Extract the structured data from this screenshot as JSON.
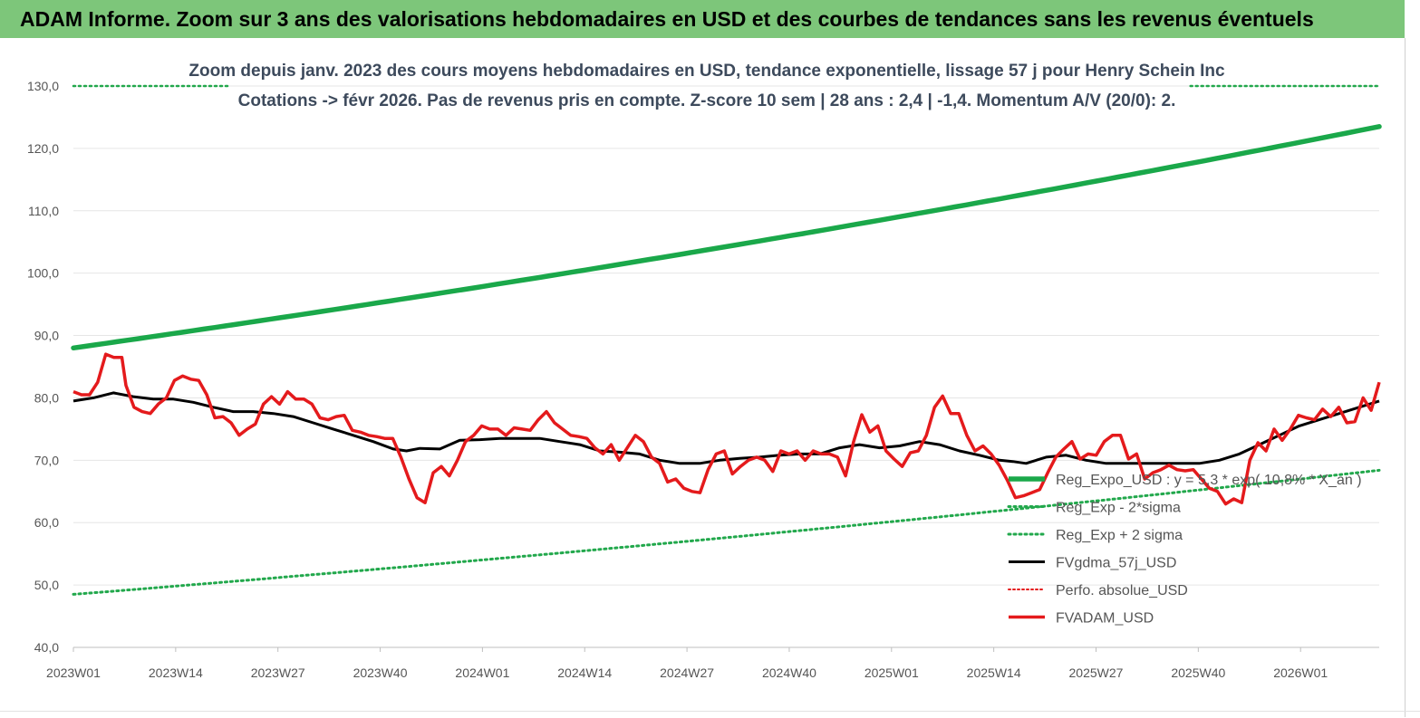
{
  "banner": {
    "title": "ADAM Informe. Zoom sur 3 ans des valorisations hebdomadaires en USD et des courbes de tendances sans les revenus éventuels"
  },
  "colors": {
    "banner_bg": "#7dc67a",
    "trend": "#1aa84a",
    "band": "#22a84c",
    "gdma": "#000000",
    "adam": "#e41a1c",
    "perfo": "#e41a1c"
  },
  "chart_data": {
    "type": "line",
    "title_line1": "Zoom depuis janv. 2023 des cours moyens hebdomadaires en USD, tendance exponentielle, lissage 57 j pour Henry Schein Inc",
    "title_line2": "Cotations -> févr 2026. Pas de revenus pris en compte. Z-score 10 sem  | 28 ans : 2,4 | -1,4. Momentum A/V (20/0): 2.",
    "ylim": [
      40,
      130
    ],
    "yticks": [
      "40,0",
      "50,0",
      "60,0",
      "70,0",
      "80,0",
      "90,0",
      "100,0",
      "110,0",
      "120,0",
      "130,0"
    ],
    "ytick_values": [
      40,
      50,
      60,
      70,
      80,
      90,
      100,
      110,
      120,
      130
    ],
    "xticks": [
      "2023W01",
      "2023W14",
      "2023W27",
      "2023W40",
      "2024W01",
      "2024W14",
      "2024W27",
      "2024W40",
      "2025W01",
      "2025W14",
      "2025W27",
      "2025W40",
      "2026W01"
    ],
    "xtick_weeks": [
      0,
      13,
      26,
      39,
      52,
      65,
      78,
      91,
      104,
      117,
      130,
      143,
      156
    ],
    "week_count": 167,
    "legend": [
      "Reg_Expo_USD : y = 5,3 * exp( 10,8% * X_an )",
      "Reg_Exp - 2*sigma",
      "Reg_Exp + 2 sigma",
      "FVgdma_57j_USD",
      "Perfo. absolue_USD",
      "FVADAM_USD"
    ],
    "legend_position": "right",
    "series": [
      {
        "name": "Reg_Expo_USD : y = 5,3 * exp( 10,8% * X_an )",
        "style": "solid-thick",
        "points": [
          [
            0,
            88.0
          ],
          [
            166,
            123.5
          ]
        ],
        "growth": "exponential"
      },
      {
        "name": "Reg_Exp - 2*sigma",
        "style": "dotted",
        "points": [
          [
            0,
            48.5
          ],
          [
            166,
            68.4
          ]
        ],
        "growth": "exponential"
      },
      {
        "name": "Reg_Exp + 2 sigma",
        "style": "dotted",
        "points": [
          [
            0,
            130.0
          ],
          [
            20,
            130.0
          ]
        ],
        "points_right": [
          [
            142,
            130.0
          ],
          [
            166,
            130.0
          ]
        ]
      },
      {
        "name": "FVgdma_57j_USD",
        "style": "solid",
        "points": [
          [
            0,
            79.5
          ],
          [
            3,
            80.0
          ],
          [
            6,
            80.8
          ],
          [
            9,
            80.2
          ],
          [
            12,
            79.8
          ],
          [
            15,
            79.8
          ],
          [
            18,
            79.3
          ],
          [
            21,
            78.5
          ],
          [
            24,
            77.8
          ],
          [
            27,
            77.8
          ],
          [
            30,
            77.5
          ],
          [
            33,
            77.0
          ],
          [
            36,
            76.0
          ],
          [
            39,
            75.0
          ],
          [
            42,
            74.0
          ],
          [
            45,
            73.0
          ],
          [
            48,
            71.8
          ],
          [
            50,
            71.5
          ],
          [
            52,
            71.9
          ],
          [
            55,
            71.8
          ],
          [
            58,
            73.2
          ],
          [
            61,
            73.3
          ],
          [
            64,
            73.5
          ],
          [
            67,
            73.5
          ],
          [
            70,
            73.5
          ],
          [
            73,
            73.0
          ],
          [
            76,
            72.5
          ],
          [
            79,
            71.5
          ],
          [
            82,
            71.3
          ],
          [
            85,
            71.0
          ],
          [
            88,
            70.0
          ],
          [
            91,
            69.5
          ],
          [
            94,
            69.5
          ],
          [
            97,
            70.0
          ],
          [
            100,
            70.3
          ],
          [
            103,
            70.5
          ],
          [
            106,
            70.8
          ],
          [
            109,
            71.0
          ],
          [
            112,
            71.0
          ],
          [
            115,
            72.0
          ],
          [
            118,
            72.5
          ],
          [
            121,
            72.0
          ],
          [
            124,
            72.3
          ],
          [
            127,
            73.0
          ],
          [
            130,
            72.5
          ],
          [
            133,
            71.5
          ],
          [
            136,
            70.8
          ],
          [
            139,
            70.0
          ],
          [
            141,
            69.8
          ],
          [
            143,
            69.5
          ],
          [
            146,
            70.5
          ],
          [
            149,
            70.8
          ],
          [
            152,
            70.0
          ],
          [
            155,
            69.5
          ],
          [
            158,
            69.5
          ],
          [
            161,
            69.5
          ],
          [
            164,
            69.5
          ],
          [
            166,
            69.5
          ],
          [
            169,
            69.5
          ],
          [
            172,
            70.0
          ],
          [
            175,
            71.0
          ],
          [
            178,
            72.5
          ],
          [
            181,
            74.0
          ],
          [
            184,
            75.5
          ],
          [
            187,
            76.5
          ],
          [
            190,
            77.5
          ],
          [
            193,
            78.5
          ],
          [
            196,
            79.5
          ]
        ],
        "note_mapping": "x = week index scaled by 166/196"
      },
      {
        "name": "Perfo. absolue_USD",
        "style": "dotted",
        "points": []
      },
      {
        "name": "FVADAM_USD",
        "style": "solid-thick",
        "points": [
          [
            0,
            81.0
          ],
          [
            2,
            80.5
          ],
          [
            4,
            80.5
          ],
          [
            6,
            82.5
          ],
          [
            8,
            87.0
          ],
          [
            10,
            86.5
          ],
          [
            12,
            86.5
          ],
          [
            13,
            82.0
          ],
          [
            15,
            78.5
          ],
          [
            17,
            77.8
          ],
          [
            19,
            77.5
          ],
          [
            21,
            79.0
          ],
          [
            23,
            80.0
          ],
          [
            25,
            82.8
          ],
          [
            27,
            83.5
          ],
          [
            29,
            83.0
          ],
          [
            31,
            82.8
          ],
          [
            33,
            80.5
          ],
          [
            35,
            76.8
          ],
          [
            37,
            77.0
          ],
          [
            39,
            76.0
          ],
          [
            41,
            74.0
          ],
          [
            43,
            75.0
          ],
          [
            45,
            75.8
          ],
          [
            47,
            79.0
          ],
          [
            49,
            80.2
          ],
          [
            51,
            79.0
          ],
          [
            53,
            81.0
          ],
          [
            55,
            79.8
          ],
          [
            57,
            79.8
          ],
          [
            59,
            79.0
          ],
          [
            61,
            76.8
          ],
          [
            63,
            76.5
          ],
          [
            65,
            77.0
          ],
          [
            67,
            77.2
          ],
          [
            69,
            74.8
          ],
          [
            71,
            74.5
          ],
          [
            73,
            74.0
          ],
          [
            75,
            73.8
          ],
          [
            77,
            73.5
          ],
          [
            79,
            73.5
          ],
          [
            81,
            70.5
          ],
          [
            83,
            67.0
          ],
          [
            85,
            64.0
          ],
          [
            87,
            63.2
          ],
          [
            89,
            68.0
          ],
          [
            91,
            69.0
          ],
          [
            93,
            67.5
          ],
          [
            95,
            70.0
          ],
          [
            97,
            73.0
          ],
          [
            99,
            74.0
          ],
          [
            101,
            75.5
          ],
          [
            103,
            75.0
          ],
          [
            105,
            75.0
          ],
          [
            107,
            74.0
          ],
          [
            109,
            75.2
          ],
          [
            111,
            75.0
          ],
          [
            113,
            74.8
          ],
          [
            115,
            76.5
          ],
          [
            117,
            77.8
          ],
          [
            119,
            76.0
          ],
          [
            121,
            75.0
          ],
          [
            123,
            74.0
          ],
          [
            125,
            73.8
          ],
          [
            127,
            73.5
          ],
          [
            129,
            72.0
          ],
          [
            131,
            71.0
          ],
          [
            133,
            72.5
          ],
          [
            135,
            70.0
          ],
          [
            137,
            72.0
          ],
          [
            139,
            74.0
          ],
          [
            141,
            73.0
          ],
          [
            143,
            70.5
          ],
          [
            145,
            69.5
          ],
          [
            147,
            66.5
          ],
          [
            149,
            67.0
          ],
          [
            151,
            65.5
          ],
          [
            153,
            65.0
          ],
          [
            155,
            64.8
          ],
          [
            157,
            68.5
          ],
          [
            159,
            71.0
          ],
          [
            161,
            71.5
          ],
          [
            163,
            67.8
          ],
          [
            165,
            69.0
          ],
          [
            167,
            70.0
          ],
          [
            169,
            70.5
          ],
          [
            171,
            70.0
          ],
          [
            173,
            68.2
          ],
          [
            175,
            71.5
          ],
          [
            177,
            71.0
          ],
          [
            179,
            71.5
          ],
          [
            181,
            70.0
          ],
          [
            183,
            71.5
          ],
          [
            185,
            71.0
          ],
          [
            187,
            71.0
          ],
          [
            189,
            70.5
          ],
          [
            191,
            67.5
          ],
          [
            193,
            73.0
          ],
          [
            195,
            77.3
          ],
          [
            197,
            74.5
          ],
          [
            199,
            75.5
          ],
          [
            201,
            71.5
          ],
          [
            203,
            70.2
          ],
          [
            205,
            69.0
          ],
          [
            207,
            71.2
          ],
          [
            209,
            71.5
          ],
          [
            211,
            74.0
          ],
          [
            213,
            78.5
          ],
          [
            215,
            80.3
          ],
          [
            217,
            77.5
          ],
          [
            219,
            77.5
          ],
          [
            221,
            74.0
          ],
          [
            223,
            71.5
          ],
          [
            225,
            72.3
          ],
          [
            227,
            71.0
          ],
          [
            229,
            69.2
          ],
          [
            231,
            66.8
          ],
          [
            233,
            64.0
          ],
          [
            235,
            64.3
          ],
          [
            237,
            64.8
          ],
          [
            239,
            65.3
          ],
          [
            241,
            68.0
          ],
          [
            243,
            70.5
          ],
          [
            245,
            71.8
          ],
          [
            247,
            73.0
          ],
          [
            249,
            70.2
          ],
          [
            251,
            71.0
          ],
          [
            253,
            70.8
          ],
          [
            255,
            73.0
          ],
          [
            257,
            74.0
          ],
          [
            259,
            74.0
          ],
          [
            261,
            70.2
          ],
          [
            263,
            71.0
          ],
          [
            265,
            67.0
          ],
          [
            267,
            68.0
          ],
          [
            269,
            68.5
          ],
          [
            271,
            69.2
          ],
          [
            273,
            68.5
          ],
          [
            275,
            68.3
          ],
          [
            277,
            68.5
          ],
          [
            279,
            67.0
          ],
          [
            281,
            65.5
          ],
          [
            283,
            65.0
          ],
          [
            285,
            63.0
          ],
          [
            287,
            63.8
          ],
          [
            289,
            63.2
          ],
          [
            291,
            70.0
          ],
          [
            293,
            72.8
          ],
          [
            295,
            71.5
          ],
          [
            297,
            75.0
          ],
          [
            299,
            73.2
          ],
          [
            301,
            75.0
          ],
          [
            303,
            77.2
          ],
          [
            305,
            76.8
          ],
          [
            307,
            76.5
          ],
          [
            309,
            78.2
          ],
          [
            311,
            77.0
          ],
          [
            313,
            78.5
          ],
          [
            315,
            76.0
          ],
          [
            317,
            76.2
          ],
          [
            319,
            80.0
          ],
          [
            321,
            78.0
          ],
          [
            323,
            82.5
          ]
        ],
        "note_mapping": "x = index scaled by 166/323"
      }
    ]
  }
}
